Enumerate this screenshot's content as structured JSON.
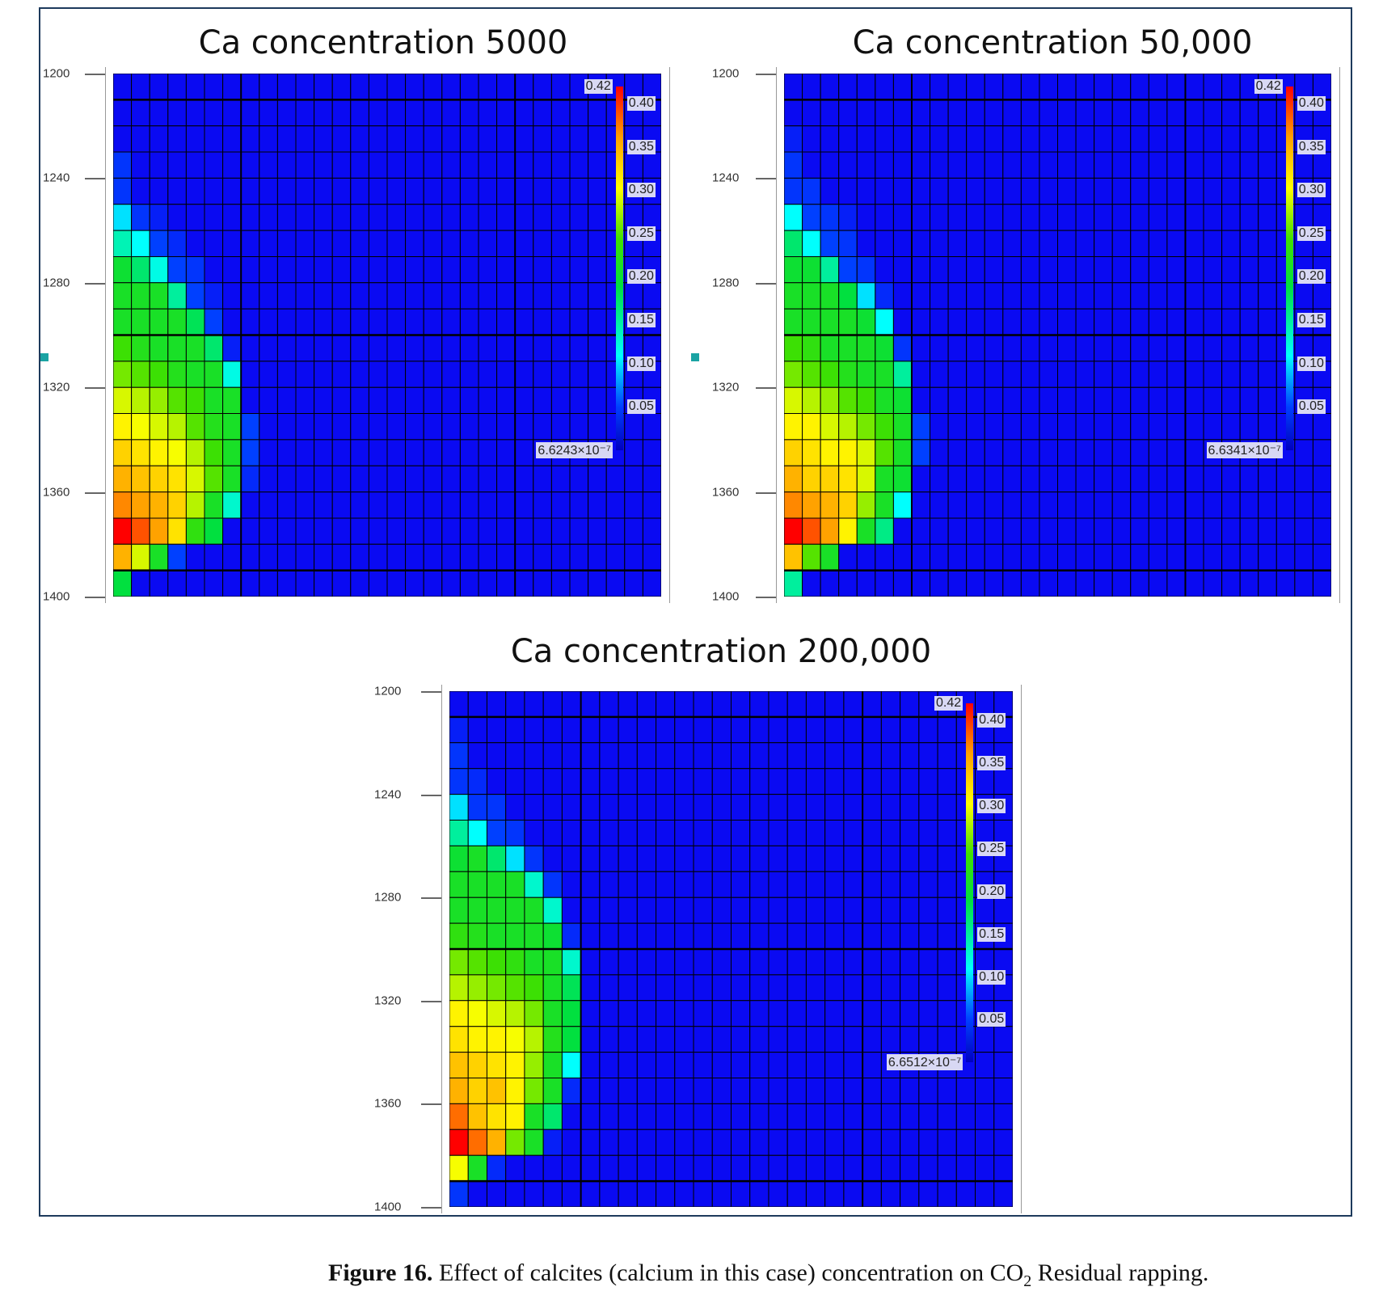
{
  "colors": {
    "background_cell": "#0a0af2",
    "frame": "#1d3a5c"
  },
  "chart_data": [
    {
      "type": "heatmap",
      "title": "Ca concentration 5000",
      "ylim": [
        1200,
        1400
      ],
      "yticks": [
        "1200",
        "1240",
        "1280",
        "1320",
        "1360",
        "1400"
      ],
      "grid": {
        "rows": 20,
        "cols": 30,
        "background_value": 0
      },
      "colorbar": {
        "max_label": "0.42",
        "min_label": "6.6243×10⁻⁷",
        "ticks": [
          "0.40",
          "0.35",
          "0.30",
          "0.25",
          "0.20",
          "0.15",
          "0.10",
          "0.05"
        ],
        "max": 0.42
      },
      "rows": [
        [],
        [],
        [],
        [
          0.04
        ],
        [
          0.04
        ],
        [
          0.1,
          0.04,
          0.02
        ],
        [
          0.14,
          0.11,
          0.05,
          0.03
        ],
        [
          0.2,
          0.17,
          0.12,
          0.05,
          0.04
        ],
        [
          0.21,
          0.21,
          0.21,
          0.15,
          0.05,
          0.02
        ],
        [
          0.21,
          0.21,
          0.21,
          0.21,
          0.18,
          0.05
        ],
        [
          0.24,
          0.22,
          0.21,
          0.21,
          0.21,
          0.17,
          0.02
        ],
        [
          0.26,
          0.25,
          0.24,
          0.22,
          0.21,
          0.21,
          0.12
        ],
        [
          0.29,
          0.28,
          0.27,
          0.25,
          0.24,
          0.21,
          0.21
        ],
        [
          0.31,
          0.3,
          0.29,
          0.28,
          0.25,
          0.22,
          0.21,
          0.05
        ],
        [
          0.33,
          0.32,
          0.31,
          0.3,
          0.28,
          0.24,
          0.21,
          0.05
        ],
        [
          0.35,
          0.34,
          0.33,
          0.32,
          0.29,
          0.25,
          0.21,
          0.03
        ],
        [
          0.37,
          0.36,
          0.35,
          0.33,
          0.28,
          0.21,
          0.13
        ],
        [
          0.42,
          0.39,
          0.36,
          0.32,
          0.23,
          0.19
        ],
        [
          0.35,
          0.29,
          0.21,
          0.05
        ],
        [
          0.19
        ]
      ]
    },
    {
      "type": "heatmap",
      "title": "Ca concentration 50,000",
      "ylim": [
        1200,
        1400
      ],
      "yticks": [
        "1200",
        "1240",
        "1280",
        "1320",
        "1360",
        "1400"
      ],
      "grid": {
        "rows": 20,
        "cols": 30,
        "background_value": 0
      },
      "colorbar": {
        "max_label": "0.42",
        "min_label": "6.6341×10⁻⁷",
        "ticks": [
          "0.40",
          "0.35",
          "0.30",
          "0.25",
          "0.20",
          "0.15",
          "0.10",
          "0.05"
        ],
        "max": 0.42
      },
      "rows": [
        [],
        [],
        [
          0.02
        ],
        [
          0.04
        ],
        [
          0.04,
          0.04
        ],
        [
          0.11,
          0.05,
          0.04,
          0.02
        ],
        [
          0.17,
          0.11,
          0.05,
          0.04
        ],
        [
          0.2,
          0.2,
          0.15,
          0.05,
          0.04
        ],
        [
          0.21,
          0.21,
          0.21,
          0.19,
          0.1,
          0.03
        ],
        [
          0.21,
          0.21,
          0.21,
          0.21,
          0.2,
          0.11
        ],
        [
          0.24,
          0.23,
          0.21,
          0.21,
          0.21,
          0.2,
          0.04
        ],
        [
          0.26,
          0.25,
          0.24,
          0.22,
          0.21,
          0.21,
          0.15
        ],
        [
          0.29,
          0.28,
          0.27,
          0.25,
          0.24,
          0.21,
          0.2
        ],
        [
          0.31,
          0.31,
          0.29,
          0.28,
          0.26,
          0.24,
          0.21,
          0.05
        ],
        [
          0.33,
          0.32,
          0.31,
          0.31,
          0.29,
          0.25,
          0.21,
          0.05
        ],
        [
          0.35,
          0.33,
          0.33,
          0.32,
          0.29,
          0.21,
          0.2
        ],
        [
          0.37,
          0.36,
          0.35,
          0.33,
          0.27,
          0.21,
          0.11
        ],
        [
          0.42,
          0.39,
          0.36,
          0.31,
          0.21,
          0.16
        ],
        [
          0.34,
          0.25,
          0.21
        ],
        [
          0.15
        ]
      ]
    },
    {
      "type": "heatmap",
      "title": "Ca concentration 200,000",
      "ylim": [
        1200,
        1400
      ],
      "yticks": [
        "1200",
        "1240",
        "1280",
        "1320",
        "1360",
        "1400"
      ],
      "grid": {
        "rows": 20,
        "cols": 30,
        "background_value": 0
      },
      "colorbar": {
        "max_label": "0.42",
        "min_label": "6.6512×10⁻⁷",
        "ticks": [
          "0.40",
          "0.35",
          "0.30",
          "0.25",
          "0.20",
          "0.15",
          "0.10",
          "0.05"
        ],
        "max": 0.42
      },
      "rows": [
        [],
        [
          0.02
        ],
        [
          0.04
        ],
        [
          0.04,
          0.03
        ],
        [
          0.1,
          0.04,
          0.04
        ],
        [
          0.15,
          0.11,
          0.05,
          0.04
        ],
        [
          0.2,
          0.21,
          0.17,
          0.1,
          0.04
        ],
        [
          0.21,
          0.21,
          0.21,
          0.21,
          0.13,
          0.04
        ],
        [
          0.21,
          0.21,
          0.21,
          0.21,
          0.21,
          0.13
        ],
        [
          0.23,
          0.22,
          0.21,
          0.21,
          0.21,
          0.2,
          0.03
        ],
        [
          0.26,
          0.25,
          0.24,
          0.23,
          0.21,
          0.21,
          0.13
        ],
        [
          0.28,
          0.27,
          0.26,
          0.25,
          0.24,
          0.21,
          0.18
        ],
        [
          0.31,
          0.3,
          0.29,
          0.28,
          0.26,
          0.21,
          0.19
        ],
        [
          0.32,
          0.31,
          0.31,
          0.3,
          0.28,
          0.22,
          0.19
        ],
        [
          0.34,
          0.33,
          0.32,
          0.31,
          0.27,
          0.21,
          0.11
        ],
        [
          0.35,
          0.33,
          0.34,
          0.31,
          0.26,
          0.21,
          0.03
        ],
        [
          0.38,
          0.34,
          0.32,
          0.31,
          0.21,
          0.17
        ],
        [
          0.42,
          0.38,
          0.35,
          0.26,
          0.21,
          0.02
        ],
        [
          0.3,
          0.21,
          0.03
        ],
        [
          0.04
        ]
      ]
    }
  ],
  "caption": {
    "label": "Figure 16.",
    "text": " Effect of calcites (calcium in this case) concentration on CO",
    "sub": "2",
    "tail": " Residual rapping."
  }
}
